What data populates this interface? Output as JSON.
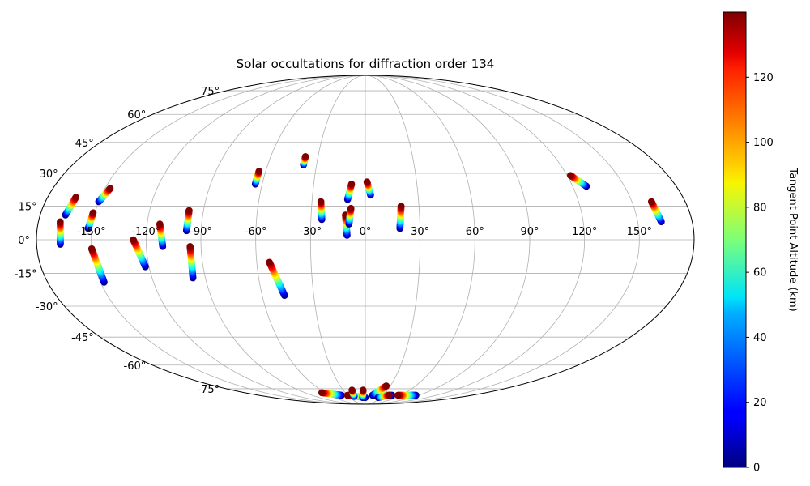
{
  "chart_data": {
    "type": "scatter",
    "projection": "mollweide",
    "title": "Solar occultations for diffraction order 134",
    "xlabel": "",
    "ylabel": "",
    "xlim": [
      -180,
      180
    ],
    "ylim": [
      -90,
      90
    ],
    "grid": true,
    "lon_tick_labels": [
      "-150°",
      "-120°",
      "-90°",
      "-60°",
      "-30°",
      "0°",
      "30°",
      "60°",
      "90°",
      "120°",
      "150°"
    ],
    "lon_ticks": [
      -150,
      -120,
      -90,
      -60,
      -30,
      0,
      30,
      60,
      90,
      120,
      150
    ],
    "lat_tick_labels": [
      "-75°",
      "-60°",
      "-45°",
      "-30°",
      "-15°",
      "0°",
      "15°",
      "30°",
      "45°",
      "60°",
      "75°"
    ],
    "lat_ticks": [
      -75,
      -60,
      -45,
      -30,
      -15,
      0,
      15,
      30,
      45,
      60,
      75
    ],
    "colormap": "jet",
    "colorbar": {
      "label": "Tangent Point Altitude (km)",
      "range": [
        0,
        140
      ],
      "ticks": [
        0,
        20,
        40,
        60,
        80,
        100,
        120
      ],
      "tick_labels": [
        "0",
        "20",
        "40",
        "60",
        "80",
        "100",
        "120"
      ]
    },
    "series": [
      {
        "lon_top": -168,
        "lat_top": 8,
        "lon_bottom": -167,
        "lat_bottom": -2
      },
      {
        "lon_top": -164,
        "lat_top": 19,
        "lon_bottom": -166,
        "lat_bottom": 11
      },
      {
        "lon_top": -151,
        "lat_top": 12,
        "lon_bottom": -152,
        "lat_bottom": 5
      },
      {
        "lon_top": -150,
        "lat_top": -4,
        "lon_bottom": -148,
        "lat_bottom": -19
      },
      {
        "lon_top": -147,
        "lat_top": 23,
        "lon_bottom": -150,
        "lat_bottom": 17
      },
      {
        "lon_top": -127,
        "lat_top": 0,
        "lon_bottom": -122,
        "lat_bottom": -12
      },
      {
        "lon_top": -113,
        "lat_top": 7,
        "lon_bottom": -111,
        "lat_bottom": -3
      },
      {
        "lon_top": -98,
        "lat_top": 13,
        "lon_bottom": -98,
        "lat_bottom": 4
      },
      {
        "lon_top": -96,
        "lat_top": -3,
        "lon_bottom": -97,
        "lat_bottom": -17
      },
      {
        "lon_top": -64,
        "lat_top": 31,
        "lon_bottom": -64,
        "lat_bottom": 25
      },
      {
        "lon_top": -53,
        "lat_top": -10,
        "lon_bottom": -47,
        "lat_bottom": -25
      },
      {
        "lon_top": -38,
        "lat_top": 38,
        "lon_bottom": -38,
        "lat_bottom": 34
      },
      {
        "lon_top": -25,
        "lat_top": 17,
        "lon_bottom": -24,
        "lat_bottom": 9
      },
      {
        "lon_top": -11,
        "lat_top": 11,
        "lon_bottom": -10,
        "lat_bottom": 2
      },
      {
        "lon_top": -8,
        "lat_top": 14,
        "lon_bottom": -9,
        "lat_bottom": 7
      },
      {
        "lon_top": -8,
        "lat_top": 25,
        "lon_bottom": -10,
        "lat_bottom": 18
      },
      {
        "lon_top": 1,
        "lat_top": 26,
        "lon_bottom": 3,
        "lat_bottom": 20
      },
      {
        "lon_top": 20,
        "lat_top": 15,
        "lon_bottom": 19,
        "lat_bottom": 5
      },
      {
        "lon_top": 122,
        "lat_top": 29,
        "lon_bottom": 128,
        "lat_bottom": 24
      },
      {
        "lon_top": 161,
        "lat_top": 17,
        "lon_bottom": 163,
        "lat_bottom": 8
      },
      {
        "lon_top": -65,
        "lat_top": -78,
        "lon_bottom": -40,
        "lat_bottom": -80
      },
      {
        "lon_top": -30,
        "lat_top": -80,
        "lon_bottom": 0,
        "lat_bottom": -82
      },
      {
        "lon_top": -18,
        "lat_top": -76,
        "lon_bottom": -20,
        "lat_bottom": -81
      },
      {
        "lon_top": -3,
        "lat_top": -76,
        "lon_bottom": -5,
        "lat_bottom": -82
      },
      {
        "lon_top": 15,
        "lat_top": -80,
        "lon_bottom": 45,
        "lat_bottom": -80
      },
      {
        "lon_top": 25,
        "lat_top": -73,
        "lon_bottom": 12,
        "lat_bottom": -80
      },
      {
        "lon_top": 40,
        "lat_top": -80,
        "lon_bottom": 25,
        "lat_bottom": -82
      },
      {
        "lon_top": 55,
        "lat_top": -80,
        "lon_bottom": 85,
        "lat_bottom": -80
      }
    ]
  }
}
